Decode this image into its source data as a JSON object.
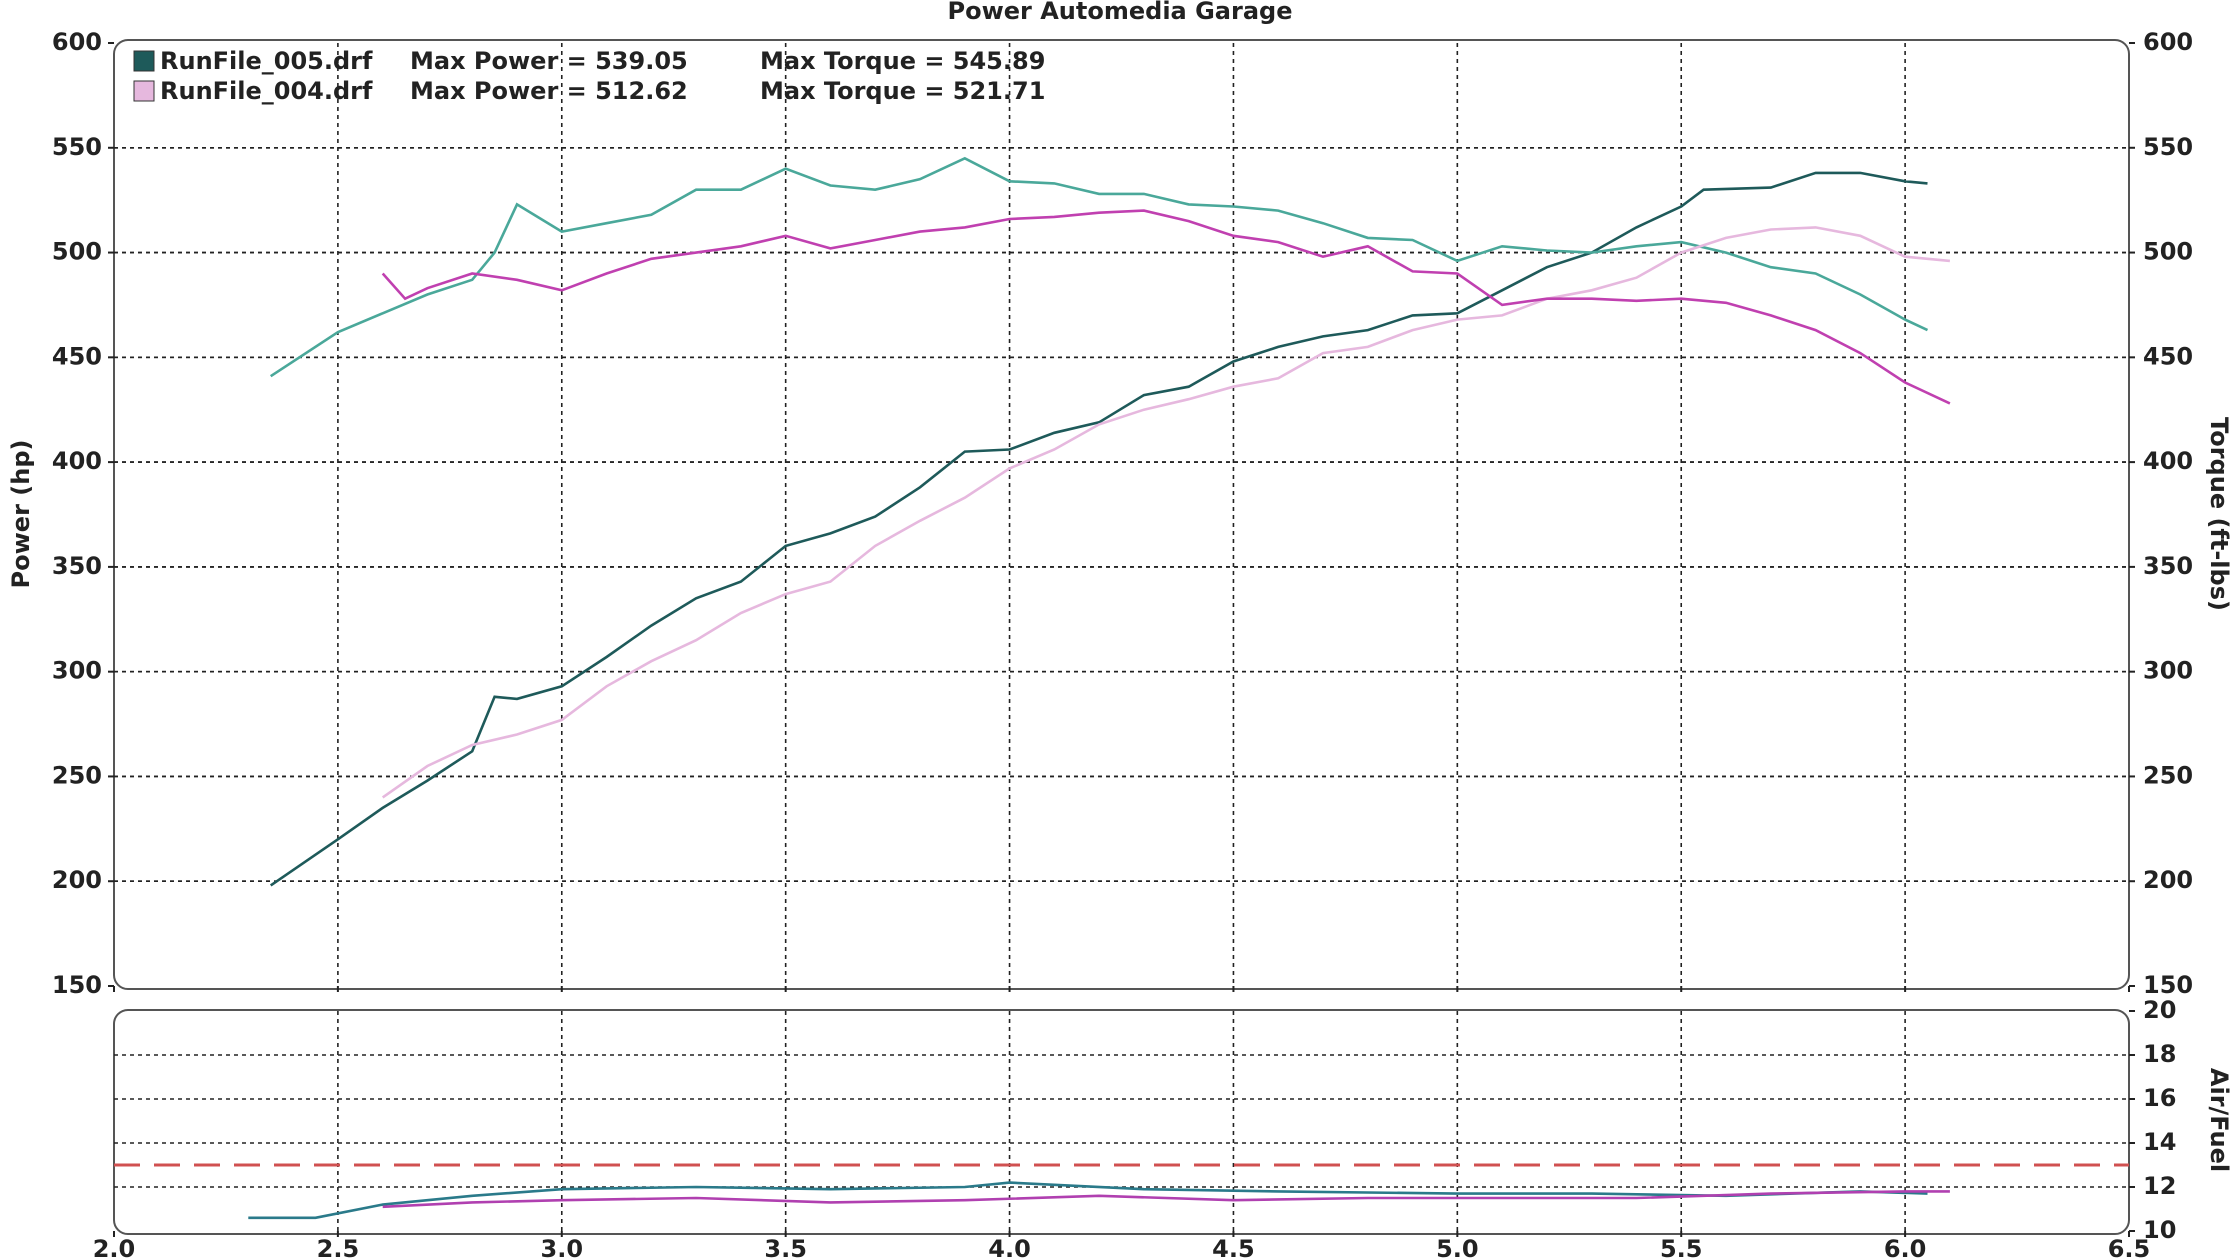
{
  "chart_data": [
    {
      "type": "line",
      "title": "Power Automedia Garage",
      "y_label": "Power (hp)",
      "y2_label": "Torque (ft-lbs)",
      "xlim": [
        2.0,
        6.5
      ],
      "ylim": [
        150,
        600
      ],
      "yticks": [
        150,
        200,
        250,
        300,
        350,
        400,
        450,
        500,
        550,
        600
      ],
      "y2lim": [
        150,
        600
      ],
      "y2ticks": [
        150,
        200,
        250,
        300,
        350,
        400,
        450,
        500,
        550,
        600
      ],
      "grid": true,
      "series": [
        {
          "name": "RunFile_005.drf",
          "label": "Max Power = 539.05",
          "color": "#1e5a5a",
          "x": [
            2.35,
            2.5,
            2.6,
            2.7,
            2.8,
            2.85,
            2.9,
            3.0,
            3.1,
            3.2,
            3.3,
            3.4,
            3.5,
            3.6,
            3.7,
            3.8,
            3.9,
            4.0,
            4.1,
            4.2,
            4.3,
            4.4,
            4.5,
            4.6,
            4.7,
            4.8,
            4.9,
            5.0,
            5.1,
            5.2,
            5.3,
            5.4,
            5.5,
            5.55,
            5.7,
            5.8,
            5.9,
            6.0,
            6.05
          ],
          "values": [
            198,
            220,
            235,
            248,
            262,
            288,
            287,
            293,
            307,
            322,
            335,
            343,
            360,
            366,
            374,
            388,
            405,
            406,
            414,
            419,
            432,
            436,
            448,
            455,
            460,
            463,
            470,
            471,
            482,
            493,
            500,
            512,
            522,
            530,
            531,
            538,
            538,
            534,
            533
          ]
        },
        {
          "label": "Max Torque = 545.89",
          "axis": "y2",
          "color": "#4aa89a",
          "x": [
            2.35,
            2.5,
            2.6,
            2.7,
            2.8,
            2.85,
            2.9,
            3.0,
            3.1,
            3.2,
            3.3,
            3.4,
            3.5,
            3.6,
            3.7,
            3.8,
            3.9,
            4.0,
            4.1,
            4.2,
            4.3,
            4.4,
            4.5,
            4.6,
            4.7,
            4.8,
            4.9,
            5.0,
            5.1,
            5.2,
            5.3,
            5.4,
            5.5,
            5.6,
            5.7,
            5.8,
            5.9,
            6.0,
            6.05
          ],
          "values": [
            441,
            462,
            471,
            480,
            487,
            500,
            523,
            510,
            514,
            518,
            530,
            530,
            540,
            532,
            530,
            535,
            545,
            534,
            533,
            528,
            528,
            523,
            522,
            520,
            514,
            507,
            506,
            496,
            503,
            501,
            500,
            503,
            505,
            500,
            493,
            490,
            480,
            468,
            463
          ]
        },
        {
          "name": "RunFile_004.drf",
          "label": "Max Power = 512.62",
          "color": "#e6b8de",
          "x": [
            2.6,
            2.7,
            2.8,
            2.9,
            3.0,
            3.1,
            3.2,
            3.3,
            3.4,
            3.5,
            3.6,
            3.7,
            3.8,
            3.9,
            4.0,
            4.1,
            4.2,
            4.3,
            4.4,
            4.5,
            4.6,
            4.7,
            4.8,
            4.9,
            5.0,
            5.1,
            5.2,
            5.3,
            5.4,
            5.5,
            5.6,
            5.7,
            5.8,
            5.9,
            6.0,
            6.1
          ],
          "values": [
            240,
            255,
            265,
            270,
            277,
            293,
            305,
            315,
            328,
            337,
            343,
            360,
            372,
            383,
            397,
            406,
            418,
            425,
            430,
            436,
            440,
            452,
            455,
            463,
            468,
            470,
            478,
            482,
            488,
            500,
            507,
            511,
            512,
            508,
            498,
            496
          ]
        },
        {
          "label": "Max Torque = 521.71",
          "axis": "y2",
          "color": "#c040b0",
          "x": [
            2.6,
            2.65,
            2.7,
            2.8,
            2.9,
            3.0,
            3.1,
            3.2,
            3.3,
            3.4,
            3.5,
            3.6,
            3.7,
            3.8,
            3.9,
            4.0,
            4.1,
            4.2,
            4.3,
            4.4,
            4.5,
            4.6,
            4.7,
            4.8,
            4.9,
            5.0,
            5.1,
            5.2,
            5.3,
            5.4,
            5.5,
            5.6,
            5.7,
            5.8,
            5.9,
            6.0,
            6.1
          ],
          "values": [
            490,
            478,
            483,
            490,
            487,
            482,
            490,
            497,
            500,
            503,
            508,
            502,
            506,
            510,
            512,
            516,
            517,
            519,
            520,
            515,
            508,
            505,
            498,
            503,
            491,
            490,
            475,
            478,
            478,
            477,
            478,
            476,
            470,
            463,
            452,
            438,
            428
          ]
        }
      ]
    },
    {
      "type": "line",
      "y2_label": "Air/Fuel",
      "xlim": [
        2.0,
        6.5
      ],
      "xticks": [
        {
          "value": 2,
          "label": "2.0"
        },
        2.5,
        {
          "value": 3,
          "label": "3.0"
        },
        3.5,
        {
          "value": 4,
          "label": "4.0"
        },
        4.5,
        {
          "value": 5,
          "label": "5.0"
        },
        5.5,
        {
          "value": 6,
          "label": "6.0"
        },
        6.5
      ],
      "y2lim": [
        10,
        20
      ],
      "y2ticks": [
        10,
        12,
        14,
        16,
        18,
        20
      ],
      "grid": true,
      "reference": 13,
      "reference_color": "#d05050",
      "series": [
        {
          "axis": "y2",
          "color": "#2a7a8a",
          "x": [
            2.3,
            2.45,
            2.6,
            2.8,
            3.0,
            3.3,
            3.6,
            3.9,
            4.0,
            4.3,
            4.6,
            5.0,
            5.3,
            5.6,
            5.9,
            6.05
          ],
          "values": [
            10.6,
            10.6,
            11.2,
            11.6,
            11.9,
            12.0,
            11.9,
            12.0,
            12.2,
            11.9,
            11.8,
            11.7,
            11.7,
            11.6,
            11.8,
            11.7
          ]
        },
        {
          "axis": "y2",
          "color": "#b040b0",
          "x": [
            2.6,
            2.8,
            3.0,
            3.3,
            3.6,
            3.9,
            4.2,
            4.5,
            4.8,
            5.1,
            5.4,
            5.7,
            6.0,
            6.1
          ],
          "values": [
            11.1,
            11.3,
            11.4,
            11.5,
            11.3,
            11.4,
            11.6,
            11.4,
            11.5,
            11.5,
            11.5,
            11.7,
            11.8,
            11.8
          ]
        }
      ]
    }
  ]
}
